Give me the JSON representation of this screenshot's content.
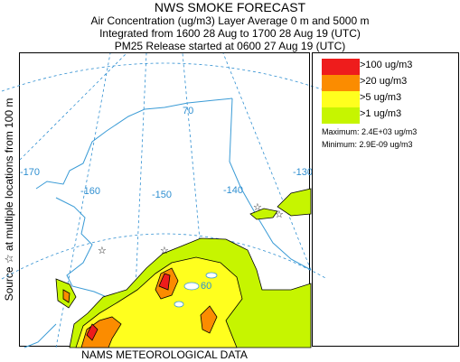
{
  "header": {
    "title": "NWS SMOKE FORECAST",
    "line1": "Air Concentration (ug/m3) Layer Average    0 m and  5000 m",
    "line2": "Integrated from 1600 28 Aug to 1700 28 Aug 19 (UTC)",
    "line3": "PM25 Release started at 0600 27 Aug 19 (UTC)"
  },
  "side_label": "Source ☆ at multiple locations      from   100 m",
  "footer": "NAMS METEOROLOGICAL DATA",
  "map": {
    "longitude_labels": [
      "-170",
      "-160",
      "-150",
      "-140",
      "-130"
    ],
    "latitude_labels": [
      "70",
      "60"
    ],
    "source_marker": "☆"
  },
  "legend": {
    "items": [
      {
        "label": ">100 ug/m3",
        "color": "#ee1c1c"
      },
      {
        "label": ">20 ug/m3",
        "color": "#fb8c00"
      },
      {
        "label": ">5 ug/m3",
        "color": "#ffff1e"
      },
      {
        "label": ">1 ug/m3",
        "color": "#c6f500"
      }
    ],
    "maximum": "Maximum: 2.4E+03 ug/m3",
    "minimum": "Minimum: 2.9E-09 ug/m3"
  },
  "colors": {
    "graticule": "#2f8fd1",
    "coastline": "#3a9bd6",
    "contour": "#000000"
  }
}
